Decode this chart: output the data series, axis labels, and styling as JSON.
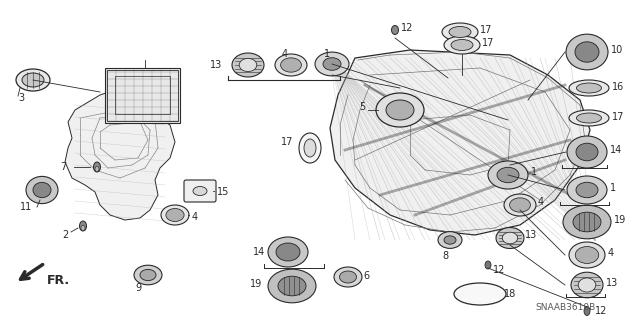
{
  "bg_color": "#ffffff",
  "line_color": "#2a2a2a",
  "watermark": "SNAAB3610B",
  "fig_width": 6.4,
  "fig_height": 3.19,
  "dpi": 100
}
